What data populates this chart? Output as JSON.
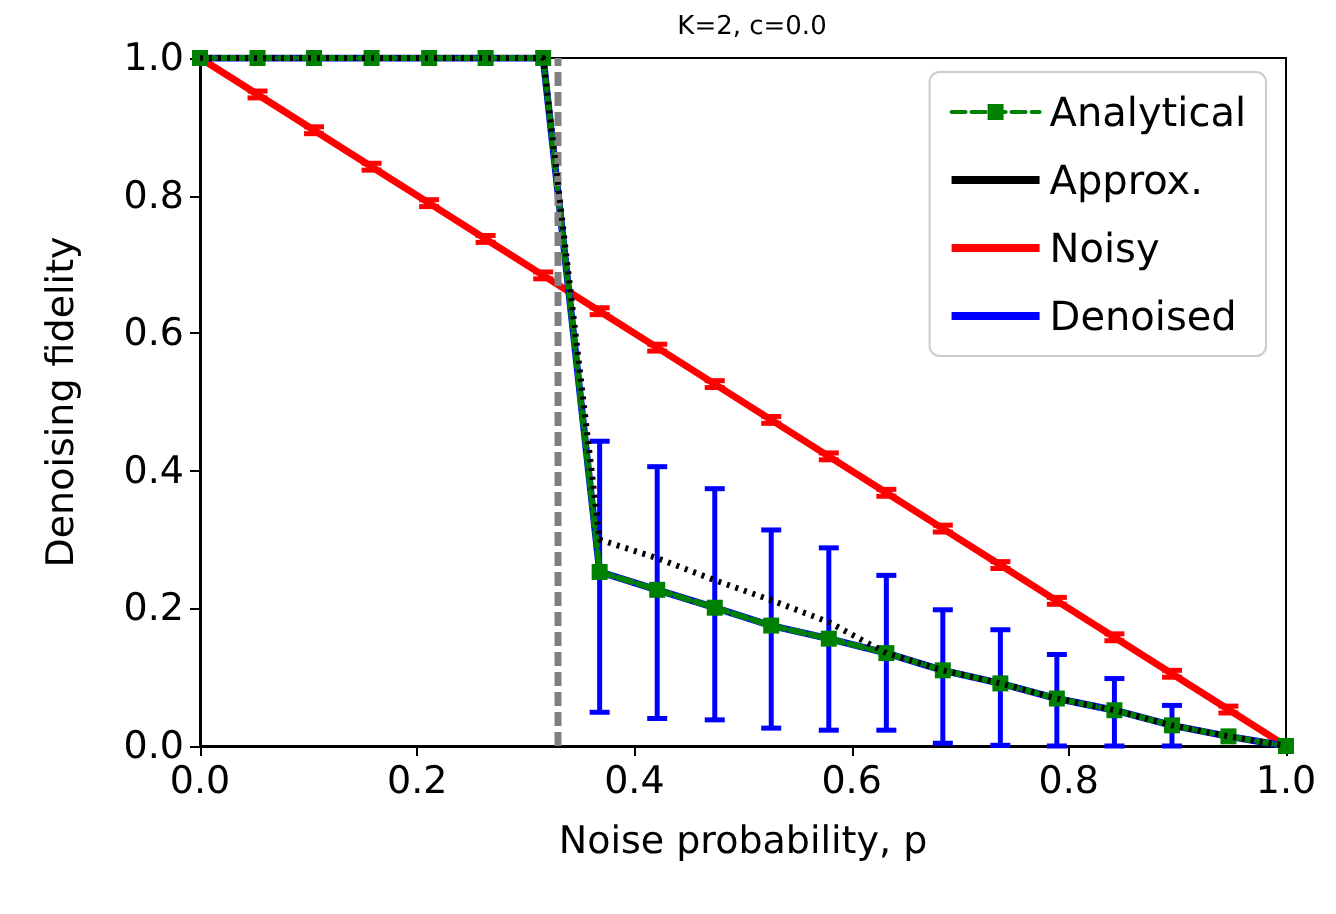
{
  "chart_data": {
    "type": "line",
    "title": "K=2, c=0.0",
    "xlabel": "Noise probability, p",
    "ylabel": "Denoising fidelity",
    "x": [
      0,
      0.053,
      0.105,
      0.158,
      0.211,
      0.263,
      0.316,
      0.368,
      0.421,
      0.474,
      0.526,
      0.579,
      0.632,
      0.684,
      0.737,
      0.789,
      0.842,
      0.895,
      0.947,
      1
    ],
    "series": [
      {
        "name": "Analytical",
        "color": "#008000",
        "line_style": "dashed",
        "marker": "square",
        "values": [
          1,
          1,
          1,
          1,
          1,
          1,
          1,
          0.253,
          0.227,
          0.201,
          0.175,
          0.156,
          0.135,
          0.11,
          0.091,
          0.069,
          0.052,
          0.03,
          0.014,
          0
        ]
      },
      {
        "name": "Approx.",
        "color": "#000000",
        "line_style": "dotted",
        "marker": "none",
        "values": [
          1,
          1,
          1,
          1,
          1,
          1,
          1,
          0.3,
          0.273,
          0.241,
          0.212,
          0.18,
          0.135,
          0.11,
          0.091,
          0.069,
          0.052,
          0.03,
          0.014,
          0
        ]
      },
      {
        "name": "Noisy",
        "color": "#ff0000",
        "line_style": "solid",
        "marker": "none",
        "values": [
          1,
          0.947,
          0.895,
          0.842,
          0.789,
          0.737,
          0.684,
          0.632,
          0.579,
          0.526,
          0.474,
          0.421,
          0.368,
          0.316,
          0.263,
          0.211,
          0.158,
          0.105,
          0.053,
          0
        ],
        "errors": [
          null,
          0.005,
          0.005,
          0.005,
          0.005,
          0.005,
          0.005,
          0.005,
          0.005,
          0.005,
          0.005,
          0.005,
          0.005,
          0.005,
          0.005,
          0.005,
          0.005,
          0.005,
          0.005,
          null
        ]
      },
      {
        "name": "Denoised",
        "color": "#0000ff",
        "line_style": "solid",
        "marker": "none",
        "values": [
          1,
          1,
          1,
          1,
          1,
          1,
          1,
          0.253,
          0.227,
          0.201,
          0.175,
          0.156,
          0.135,
          0.11,
          0.091,
          0.069,
          0.052,
          0.03,
          0.014,
          0
        ],
        "errors": [
          null,
          null,
          null,
          null,
          null,
          null,
          null,
          [
            0.049,
            0.443
          ],
          [
            0.04,
            0.406
          ],
          [
            0.038,
            0.374
          ],
          [
            0.026,
            0.314
          ],
          [
            0.023,
            0.288
          ],
          [
            0.023,
            0.248
          ],
          [
            0.004,
            0.198
          ],
          [
            0.001,
            0.169
          ],
          [
            0,
            0.133
          ],
          [
            0,
            0.098
          ],
          [
            0,
            0.059
          ],
          null,
          null
        ]
      }
    ],
    "ref_lines": [
      {
        "axis": "x",
        "value": 0.333,
        "color": "#808080",
        "line_style": "dashed"
      }
    ],
    "xlim": [
      0,
      1
    ],
    "xticks": [
      {
        "value": 0,
        "label": "0.0"
      },
      {
        "value": 0.2,
        "label": "0.2"
      },
      {
        "value": 0.4,
        "label": "0.4"
      },
      {
        "value": 0.6,
        "label": "0.6"
      },
      {
        "value": 0.8,
        "label": "0.8"
      },
      {
        "value": 1,
        "label": "1.0"
      }
    ],
    "ylim": [
      0,
      1
    ],
    "yticks": [
      {
        "value": 0,
        "label": "0.0"
      },
      {
        "value": 0.2,
        "label": "0.2"
      },
      {
        "value": 0.4,
        "label": "0.4"
      },
      {
        "value": 0.6,
        "label": "0.6"
      },
      {
        "value": 0.8,
        "label": "0.8"
      },
      {
        "value": 1,
        "label": "1.0"
      }
    ],
    "grid": false,
    "legend": "top right"
  }
}
